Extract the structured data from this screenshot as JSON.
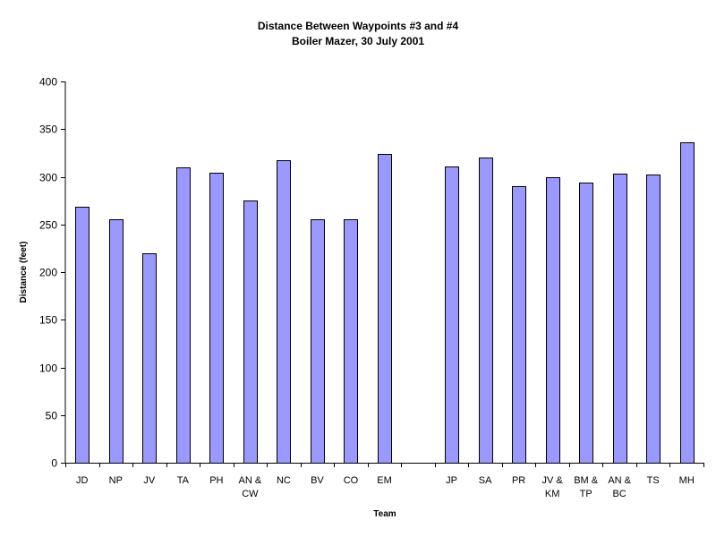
{
  "chart_data": {
    "type": "bar",
    "title": "Distance Between Waypoints #3 and #4",
    "subtitle": "Boiler Mazer, 30 July 2001",
    "xlabel": "Team",
    "ylabel": "Distance (feet)",
    "ylim": [
      0,
      400
    ],
    "yticks": [
      0,
      50,
      100,
      150,
      200,
      250,
      300,
      350,
      400
    ],
    "grid": false,
    "legend": "none",
    "categories": [
      [
        "JD"
      ],
      [
        "NP"
      ],
      [
        "JV"
      ],
      [
        "TA"
      ],
      [
        "PH"
      ],
      [
        "AN &",
        "CW"
      ],
      [
        "NC"
      ],
      [
        "BV"
      ],
      [
        "CO"
      ],
      [
        "EM"
      ],
      [
        ""
      ],
      [
        "JP"
      ],
      [
        "SA"
      ],
      [
        "PR"
      ],
      [
        "JV &",
        "KM"
      ],
      [
        "BM &",
        "TP"
      ],
      [
        "AN &",
        "BC"
      ],
      [
        "TS"
      ],
      [
        "MH"
      ]
    ],
    "values": [
      269,
      255,
      220,
      310,
      304,
      275,
      317,
      255,
      255,
      324,
      null,
      311,
      320,
      290,
      300,
      294,
      303,
      302,
      336
    ],
    "colors": {
      "bar_fill": "#9999ff",
      "bar_stroke": "#000000",
      "axis": "#000000",
      "background": "#ffffff"
    }
  }
}
